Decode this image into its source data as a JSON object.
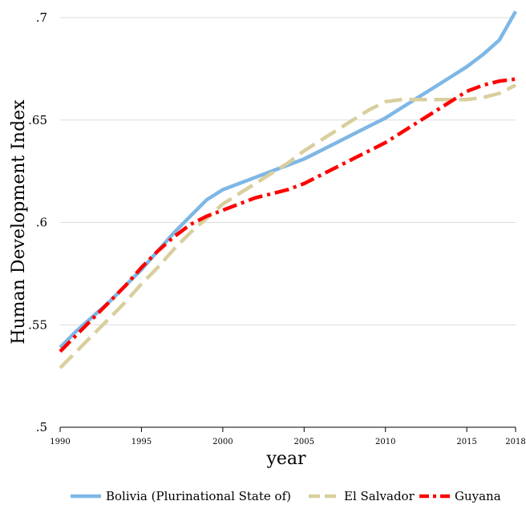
{
  "chart_data": {
    "type": "line",
    "title": "",
    "xlabel": "year",
    "ylabel": "Human Development Index",
    "xlim": [
      1990,
      2018
    ],
    "ylim": [
      0.5,
      0.7
    ],
    "xticks": [
      1990,
      1995,
      2000,
      2005,
      2010,
      2015,
      2018
    ],
    "xtick_labels": [
      "1990",
      "1995",
      "2000",
      "2005",
      "2010",
      "2015",
      "2018"
    ],
    "yticks": [
      0.5,
      0.55,
      0.6,
      0.65,
      0.7
    ],
    "ytick_labels": [
      ".5",
      ".55",
      ".6",
      ".65",
      ".7"
    ],
    "grid": "horizontal",
    "legend_position": "bottom",
    "x": [
      1990,
      1991,
      1992,
      1993,
      1994,
      1995,
      1996,
      1997,
      1998,
      1999,
      2000,
      2001,
      2002,
      2003,
      2004,
      2005,
      2006,
      2007,
      2008,
      2009,
      2010,
      2011,
      2012,
      2013,
      2014,
      2015,
      2016,
      2017,
      2018
    ],
    "series": [
      {
        "name": "Bolivia (Plurinational State of)",
        "color": "#7db7e6",
        "style": "solid",
        "values": [
          0.539,
          0.547,
          0.554,
          0.561,
          0.569,
          0.577,
          0.586,
          0.595,
          0.603,
          0.611,
          0.616,
          0.619,
          0.622,
          0.625,
          0.628,
          0.631,
          0.635,
          0.639,
          0.643,
          0.647,
          0.651,
          0.656,
          0.661,
          0.666,
          0.671,
          0.676,
          0.682,
          0.689,
          0.703
        ]
      },
      {
        "name": "El Salvador",
        "color": "#d9cf9e",
        "style": "dash",
        "values": [
          0.529,
          0.537,
          0.545,
          0.553,
          0.561,
          0.57,
          0.578,
          0.587,
          0.595,
          0.602,
          0.609,
          0.614,
          0.619,
          0.624,
          0.629,
          0.635,
          0.64,
          0.645,
          0.65,
          0.655,
          0.659,
          0.66,
          0.66,
          0.66,
          0.66,
          0.66,
          0.661,
          0.663,
          0.667
        ]
      },
      {
        "name": "Guyana",
        "color": "#ff0000",
        "style": "dashdot",
        "values": [
          0.537,
          0.545,
          0.553,
          0.561,
          0.569,
          0.578,
          0.586,
          0.593,
          0.599,
          0.603,
          0.606,
          0.609,
          0.612,
          0.614,
          0.616,
          0.619,
          0.623,
          0.627,
          0.631,
          0.635,
          0.639,
          0.644,
          0.649,
          0.654,
          0.659,
          0.664,
          0.667,
          0.669,
          0.67
        ]
      }
    ]
  }
}
